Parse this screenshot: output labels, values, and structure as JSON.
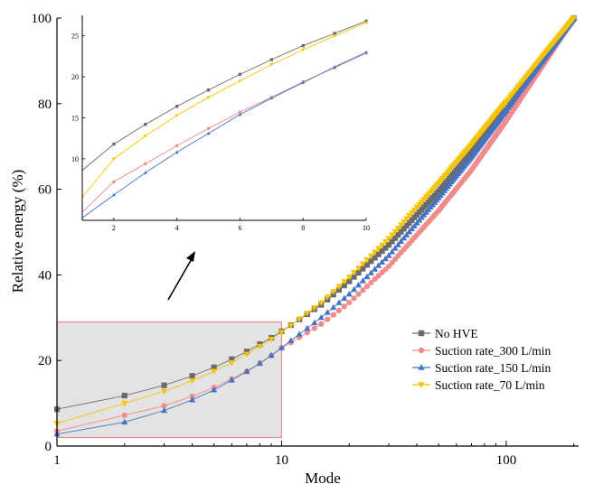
{
  "chart_data": {
    "type": "scatter",
    "title": "",
    "xlabel": "Mode",
    "ylabel": "Relative energy (%)",
    "x_scale": "log",
    "xlim": [
      1,
      210
    ],
    "ylim": [
      0,
      100
    ],
    "x_ticks": [
      1,
      10,
      100
    ],
    "y_ticks": [
      0,
      20,
      40,
      60,
      80,
      100
    ],
    "grid": false,
    "legend_position": "right",
    "series": [
      {
        "name": "No HVE",
        "color": "#6b6b6b",
        "marker": "square",
        "anchors": [
          [
            1,
            8.6
          ],
          [
            2,
            11.8
          ],
          [
            3,
            14.2
          ],
          [
            4,
            16.4
          ],
          [
            5,
            18.4
          ],
          [
            6,
            20.3
          ],
          [
            7,
            22.1
          ],
          [
            8,
            23.8
          ],
          [
            9,
            25.3
          ],
          [
            10,
            26.8
          ],
          [
            15,
            33.0
          ],
          [
            20,
            38.5
          ],
          [
            30,
            47.0
          ],
          [
            50,
            59.5
          ],
          [
            70,
            68.5
          ],
          [
            100,
            78.5
          ],
          [
            150,
            91.0
          ],
          [
            200,
            100
          ]
        ]
      },
      {
        "name": "Suction rate_300 L/min",
        "color": "#f08c8c",
        "marker": "circle",
        "anchors": [
          [
            1,
            3.5
          ],
          [
            2,
            7.2
          ],
          [
            3,
            9.4
          ],
          [
            4,
            11.6
          ],
          [
            5,
            13.7
          ],
          [
            6,
            15.7
          ],
          [
            7,
            17.5
          ],
          [
            8,
            19.4
          ],
          [
            9,
            21.1
          ],
          [
            10,
            22.9
          ],
          [
            15,
            28.5
          ],
          [
            20,
            33.5
          ],
          [
            30,
            42.0
          ],
          [
            50,
            55.0
          ],
          [
            70,
            64.5
          ],
          [
            100,
            76.0
          ],
          [
            150,
            90.0
          ],
          [
            200,
            100
          ]
        ]
      },
      {
        "name": "Suction rate_150 L/min",
        "color": "#4472c4",
        "marker": "triangle-up",
        "anchors": [
          [
            1,
            2.8
          ],
          [
            2,
            5.6
          ],
          [
            3,
            8.3
          ],
          [
            4,
            10.8
          ],
          [
            5,
            13.1
          ],
          [
            6,
            15.4
          ],
          [
            7,
            17.4
          ],
          [
            8,
            19.3
          ],
          [
            9,
            21.2
          ],
          [
            10,
            23.0
          ],
          [
            15,
            30.0
          ],
          [
            20,
            35.5
          ],
          [
            30,
            44.5
          ],
          [
            50,
            58.0
          ],
          [
            70,
            67.5
          ],
          [
            100,
            78.5
          ],
          [
            150,
            91.0
          ],
          [
            200,
            100
          ]
        ]
      },
      {
        "name": "Suction rate_70 L/min",
        "color": "#f5c400",
        "marker": "triangle-down",
        "anchors": [
          [
            1,
            5.3
          ],
          [
            2,
            10.0
          ],
          [
            3,
            12.8
          ],
          [
            4,
            15.3
          ],
          [
            5,
            17.5
          ],
          [
            6,
            19.5
          ],
          [
            7,
            21.5
          ],
          [
            8,
            23.3
          ],
          [
            9,
            25.0
          ],
          [
            10,
            26.6
          ],
          [
            15,
            33.5
          ],
          [
            20,
            39.5
          ],
          [
            30,
            48.5
          ],
          [
            50,
            61.5
          ],
          [
            70,
            70.5
          ],
          [
            100,
            80.5
          ],
          [
            150,
            92.0
          ],
          [
            200,
            100
          ]
        ]
      }
    ],
    "highlight_region": {
      "x_range": [
        1,
        10
      ],
      "y_range": [
        2,
        29
      ]
    },
    "inset": {
      "xlim": [
        1,
        10
      ],
      "ylim": [
        2.5,
        27.5
      ],
      "x_ticks": [
        2,
        4,
        6,
        8,
        10
      ],
      "y_ticks": [
        10,
        15,
        20,
        25
      ]
    }
  }
}
